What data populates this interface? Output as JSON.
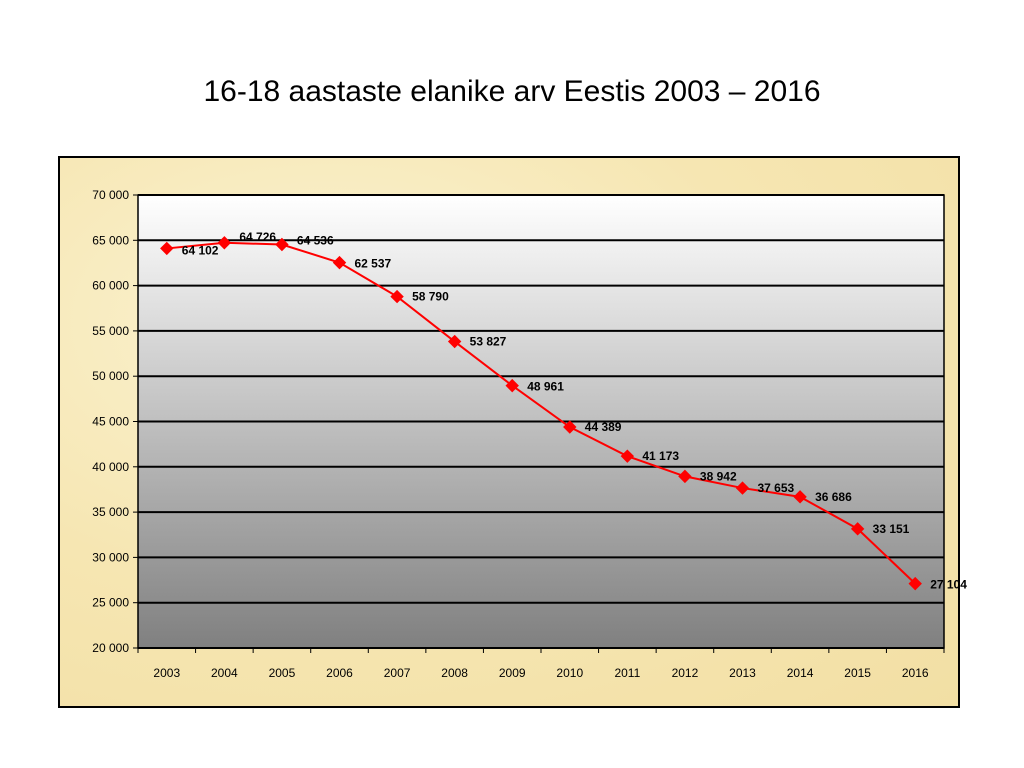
{
  "page": {
    "title": "16-18 aastaste elanike arv Eestis 2003 – 2016"
  },
  "chart_data": {
    "type": "line",
    "title": "",
    "xlabel": "",
    "ylabel": "",
    "categories": [
      "2003",
      "2004",
      "2005",
      "2006",
      "2007",
      "2008",
      "2009",
      "2010",
      "2011",
      "2012",
      "2013",
      "2014",
      "2015",
      "2016"
    ],
    "series": [
      {
        "values": [
          64102,
          64726,
          64536,
          62537,
          58790,
          53827,
          48961,
          44389,
          41173,
          38942,
          37653,
          36686,
          33151,
          27104
        ],
        "labels": [
          "64 102",
          "64 726",
          "64 536",
          "62 537",
          "58 790",
          "53 827",
          "48 961",
          "44 389",
          "41 173",
          "38 942",
          "37 653",
          "36 686",
          "33 151",
          "27 104"
        ],
        "color": "#ff0000",
        "marker": "diamond"
      }
    ],
    "ylim": [
      20000,
      70000
    ],
    "ytick_values": [
      20000,
      25000,
      30000,
      35000,
      40000,
      45000,
      50000,
      55000,
      60000,
      65000,
      70000
    ],
    "ytick_labels": [
      "20 000",
      "25 000",
      "30 000",
      "35 000",
      "40 000",
      "45 000",
      "50 000",
      "55 000",
      "60 000",
      "65 000",
      "70 000"
    ],
    "grid": true,
    "legend": "none",
    "colors": {
      "line": "#ff0000",
      "gridline": "#000000",
      "plot_background_top": "#ffffff",
      "plot_background_bottom": "#808080",
      "frame_background": "#f6e6b2"
    }
  }
}
